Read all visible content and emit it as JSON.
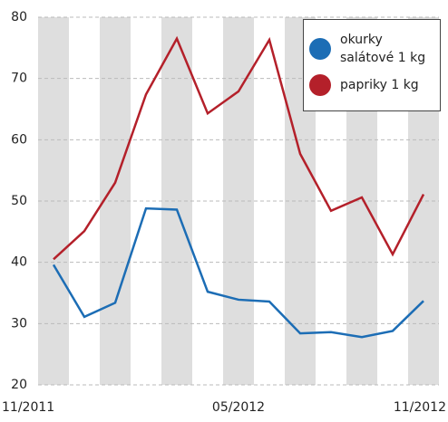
{
  "chart_data": {
    "type": "line",
    "categories": [
      "11/2011",
      null,
      null,
      null,
      null,
      null,
      "05/2012",
      null,
      null,
      null,
      null,
      null,
      "11/2012"
    ],
    "series": [
      {
        "name": "okurky salátové 1 kg",
        "color": "#1c6db5",
        "values": [
          39.6,
          31.1,
          33.4,
          48.8,
          48.6,
          35.2,
          33.9,
          33.6,
          28.4,
          28.6,
          27.8,
          28.8,
          33.7
        ]
      },
      {
        "name": "papriky 1 kg",
        "color": "#b4202a",
        "values": [
          40.5,
          45.1,
          53,
          67.4,
          76.5,
          64.3,
          67.9,
          76.3,
          57.7,
          48.4,
          50.6,
          41.3,
          51.1
        ]
      }
    ],
    "ylim": [
      20,
      80
    ],
    "yticks": [
      20,
      30,
      40,
      50,
      60,
      70,
      80
    ],
    "grid": true,
    "legend": "upper right"
  }
}
